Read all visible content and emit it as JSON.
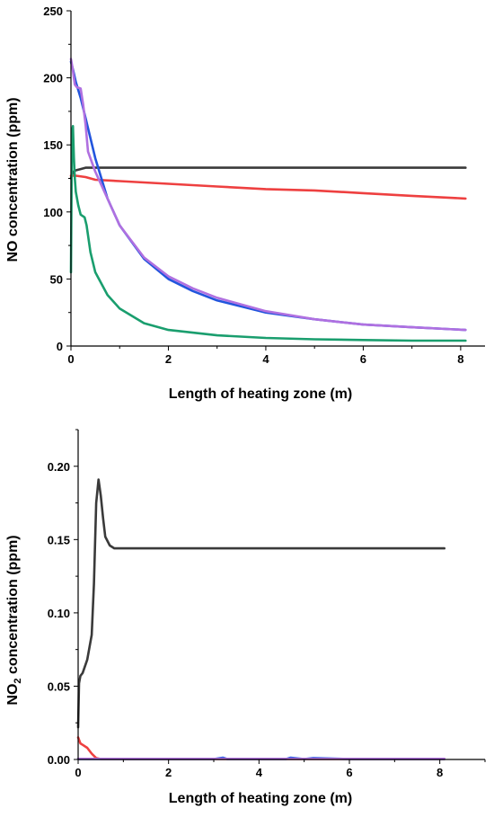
{
  "chart_data": [
    {
      "type": "line",
      "title": "",
      "xlabel": "Length of heating zone (m)",
      "ylabel_main": "NO concentration (ppm)",
      "ylabel_sub": "",
      "ylabel_tail": "",
      "xlim": [
        0,
        8.5
      ],
      "ylim": [
        0,
        250
      ],
      "xticks": [
        0,
        2,
        4,
        6,
        8
      ],
      "yticks": [
        0,
        50,
        100,
        150,
        200,
        250
      ],
      "xtick_labels": [
        "0",
        "2",
        "4",
        "6",
        "8"
      ],
      "ytick_labels": [
        "0",
        "50",
        "100",
        "150",
        "200",
        "250"
      ],
      "grid": false,
      "legend": "none",
      "series": [
        {
          "color": "#3a3a3a",
          "x": [
            0,
            0.02,
            0.05,
            0.1,
            0.2,
            0.3,
            0.5,
            1,
            2,
            4,
            6,
            8.1
          ],
          "y": [
            125,
            128,
            130,
            131,
            132,
            133,
            133,
            133,
            133,
            133,
            133,
            133
          ]
        },
        {
          "color": "#ee4040",
          "x": [
            0,
            0.05,
            0.1,
            0.3,
            0.5,
            1,
            2,
            3,
            4,
            5,
            6,
            7,
            8.1
          ],
          "y": [
            127,
            127,
            127,
            126,
            124,
            123,
            121,
            119,
            117,
            116,
            114,
            112,
            110
          ]
        },
        {
          "color": "#2255dd",
          "x": [
            0,
            0.05,
            0.1,
            0.2,
            0.3,
            0.5,
            0.75,
            1,
            1.5,
            2,
            2.5,
            3,
            4,
            5,
            6,
            7,
            8.1
          ],
          "y": [
            212,
            205,
            197,
            185,
            170,
            140,
            110,
            90,
            65,
            50,
            41,
            34,
            25,
            20,
            16,
            14,
            12
          ]
        },
        {
          "color": "#b070e0",
          "x": [
            0,
            0.03,
            0.08,
            0.12,
            0.2,
            0.25,
            0.3,
            0.35,
            0.5,
            0.75,
            1,
            1.5,
            2,
            2.5,
            3,
            4,
            5,
            6,
            7,
            8.1
          ],
          "y": [
            214,
            208,
            195,
            193,
            192,
            180,
            165,
            145,
            130,
            110,
            90,
            66,
            52,
            43,
            36,
            26,
            20,
            16,
            14,
            12
          ]
        },
        {
          "color": "#1a9e6e",
          "x": [
            0,
            0.02,
            0.04,
            0.06,
            0.08,
            0.1,
            0.15,
            0.2,
            0.28,
            0.32,
            0.4,
            0.5,
            0.75,
            1,
            1.5,
            2,
            3,
            4,
            5,
            6,
            7,
            8.1
          ],
          "y": [
            55,
            160,
            164,
            140,
            125,
            115,
            105,
            98,
            96,
            90,
            70,
            55,
            38,
            28,
            17,
            12,
            8,
            6,
            5,
            4.5,
            4,
            4
          ]
        }
      ]
    },
    {
      "type": "line",
      "title": "",
      "xlabel": "Length of heating zone (m)",
      "ylabel_main": "NO",
      "ylabel_sub": "2",
      "ylabel_tail": " concentration  (ppm)",
      "xlim": [
        0,
        9
      ],
      "ylim": [
        0,
        0.225
      ],
      "xticks": [
        0,
        2,
        4,
        6,
        8
      ],
      "yticks": [
        0,
        0.05,
        0.1,
        0.15,
        0.2
      ],
      "xtick_labels": [
        "0",
        "2",
        "4",
        "6",
        "8"
      ],
      "ytick_labels": [
        "0.00",
        "0.05",
        "0.10",
        "0.15",
        "0.20"
      ],
      "grid": false,
      "legend": "none",
      "series": [
        {
          "color": "#3a3a3a",
          "x": [
            0,
            0.02,
            0.05,
            0.1,
            0.2,
            0.3,
            0.35,
            0.4,
            0.45,
            0.5,
            0.55,
            0.6,
            0.7,
            0.8,
            1,
            2,
            4,
            6,
            8.1
          ],
          "y": [
            0.022,
            0.052,
            0.057,
            0.059,
            0.068,
            0.085,
            0.12,
            0.175,
            0.191,
            0.18,
            0.165,
            0.152,
            0.146,
            0.144,
            0.144,
            0.144,
            0.144,
            0.144,
            0.144
          ]
        },
        {
          "color": "#ee4040",
          "x": [
            0,
            0.05,
            0.1,
            0.2,
            0.3,
            0.4,
            0.5,
            1,
            2,
            4,
            6,
            8.1
          ],
          "y": [
            0.015,
            0.011,
            0.01,
            0.008,
            0.004,
            0.001,
            0.0003,
            0.0003,
            0.0003,
            0.0003,
            0.0003,
            0.0003
          ]
        },
        {
          "color": "#2255dd",
          "x": [
            0,
            1,
            2,
            3,
            3.2,
            3.3,
            4,
            4.6,
            4.7,
            5,
            5.2,
            6,
            8.1
          ],
          "y": [
            0.0003,
            0.0003,
            0.0003,
            0.0003,
            0.0012,
            0.0003,
            0.0003,
            0.0003,
            0.0012,
            0.0003,
            0.001,
            0.0003,
            0.0003
          ]
        },
        {
          "color": "#b070e0",
          "x": [
            0,
            2,
            4,
            6,
            8.1
          ],
          "y": [
            0.0004,
            0.0004,
            0.0004,
            0.0004,
            0.0004
          ]
        }
      ]
    }
  ]
}
